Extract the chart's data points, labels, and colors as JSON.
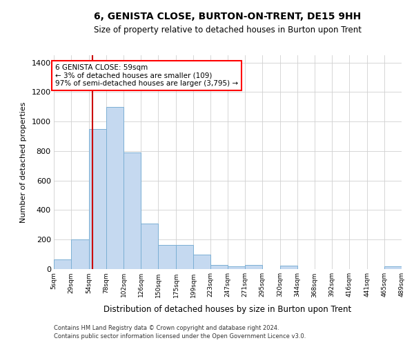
{
  "title": "6, GENISTA CLOSE, BURTON-ON-TRENT, DE15 9HH",
  "subtitle": "Size of property relative to detached houses in Burton upon Trent",
  "xlabel": "Distribution of detached houses by size in Burton upon Trent",
  "ylabel": "Number of detached properties",
  "footer1": "Contains HM Land Registry data © Crown copyright and database right 2024.",
  "footer2": "Contains public sector information licensed under the Open Government Licence v3.0.",
  "annotation_title": "6 GENISTA CLOSE: 59sqm",
  "annotation_line1": "← 3% of detached houses are smaller (109)",
  "annotation_line2": "97% of semi-detached houses are larger (3,795) →",
  "bar_color": "#c5d9f0",
  "bar_edge_color": "#7bafd4",
  "redline_color": "#cc0000",
  "redline_x": 59,
  "ylim": [
    0,
    1450
  ],
  "bin_edges": [
    5,
    29,
    54,
    78,
    102,
    126,
    150,
    175,
    199,
    223,
    247,
    271,
    295,
    320,
    344,
    368,
    392,
    416,
    441,
    465,
    489
  ],
  "bin_labels": [
    "5sqm",
    "29sqm",
    "54sqm",
    "78sqm",
    "102sqm",
    "126sqm",
    "150sqm",
    "175sqm",
    "199sqm",
    "223sqm",
    "247sqm",
    "271sqm",
    "295sqm",
    "320sqm",
    "344sqm",
    "368sqm",
    "392sqm",
    "416sqm",
    "441sqm",
    "465sqm",
    "489sqm"
  ],
  "bar_heights": [
    65,
    200,
    950,
    1100,
    790,
    310,
    165,
    165,
    100,
    30,
    20,
    30,
    0,
    25,
    0,
    0,
    0,
    0,
    0,
    20
  ],
  "fig_width": 6.0,
  "fig_height": 5.0,
  "dpi": 100
}
